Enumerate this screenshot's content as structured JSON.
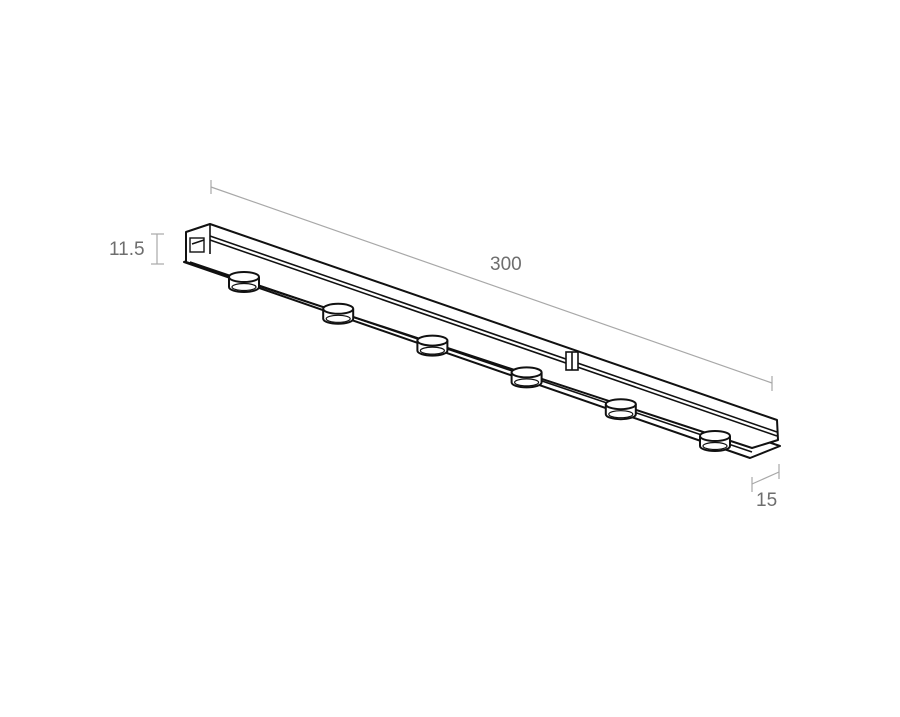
{
  "dimensions": {
    "length": "300",
    "height": "11.5",
    "width": "15"
  },
  "colors": {
    "outline": "#111111",
    "dimension_line": "#a8a8a8",
    "label": "#6e6e6e"
  },
  "fixture": {
    "spot_count": 6
  }
}
